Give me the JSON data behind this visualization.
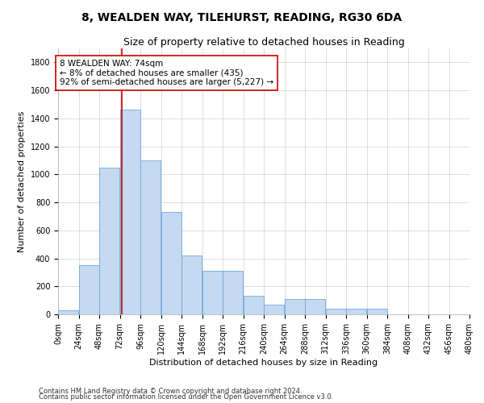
{
  "title": "8, WEALDEN WAY, TILEHURST, READING, RG30 6DA",
  "subtitle": "Size of property relative to detached houses in Reading",
  "xlabel": "Distribution of detached houses by size in Reading",
  "ylabel": "Number of detached properties",
  "footnote1": "Contains HM Land Registry data © Crown copyright and database right 2024.",
  "footnote2": "Contains public sector information licensed under the Open Government Licence v3.0.",
  "annotation_lines": [
    "8 WEALDEN WAY: 74sqm",
    "← 8% of detached houses are smaller (435)",
    "92% of semi-detached houses are larger (5,227) →"
  ],
  "property_size": 74,
  "bar_edges": [
    0,
    24,
    48,
    72,
    96,
    120,
    144,
    168,
    192,
    216,
    240,
    264,
    288,
    312,
    336,
    360,
    384,
    408,
    432,
    456,
    480
  ],
  "bar_heights": [
    30,
    350,
    1050,
    1460,
    1100,
    730,
    420,
    310,
    310,
    130,
    70,
    110,
    110,
    40,
    40,
    40,
    0,
    0,
    0,
    0
  ],
  "bar_color": "#c5d9f1",
  "bar_edge_color": "#6fa8dc",
  "vline_color": "#cc0000",
  "vline_x": 74,
  "annotation_box_color": "#cc0000",
  "ylim": [
    0,
    1900
  ],
  "yticks": [
    0,
    200,
    400,
    600,
    800,
    1000,
    1200,
    1400,
    1600,
    1800
  ],
  "xlim": [
    0,
    480
  ],
  "bg_color": "#ffffff",
  "grid_color": "#d0d0d0",
  "title_fontsize": 10,
  "subtitle_fontsize": 9,
  "ylabel_fontsize": 8,
  "xlabel_fontsize": 8,
  "tick_fontsize": 7,
  "annotation_fontsize": 7.5,
  "footnote_fontsize": 6
}
